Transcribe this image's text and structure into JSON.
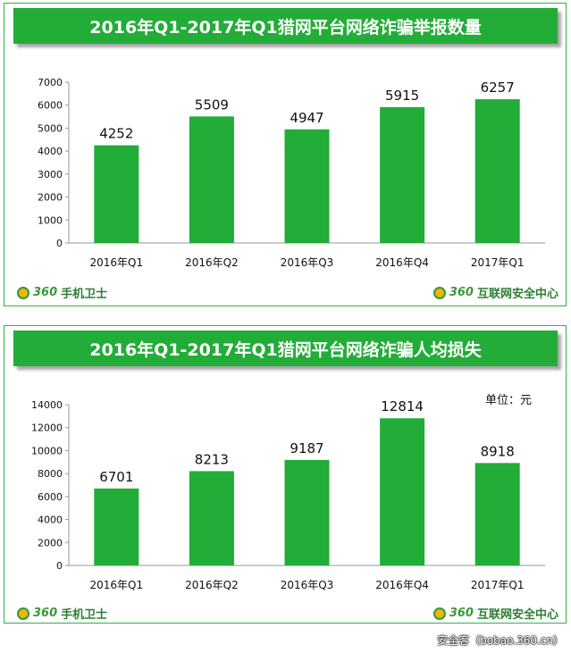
{
  "charts": [
    {
      "banner": "2016年Q1-2017年Q1猎网平台网络诈骗举报数量",
      "logo_left": {
        "num": "360",
        "text": "手机卫士"
      },
      "logo_right": {
        "num": "360",
        "text": "互联网安全中心"
      },
      "unit": ""
    },
    {
      "banner": "2016年Q1-2017年Q1猎网平台网络诈骗人均损失",
      "logo_left": {
        "num": "360",
        "text": "手机卫士"
      },
      "logo_right": {
        "num": "360",
        "text": "互联网安全中心"
      },
      "unit": "单位：元"
    }
  ],
  "watermark": "安全客（bobao.360.cn）",
  "colors": {
    "bar": "#22ac38",
    "banner": "#22ac38",
    "border": "#2db34a"
  },
  "chart_data": [
    {
      "type": "bar",
      "title": "2016年Q1-2017年Q1猎网平台网络诈骗举报数量",
      "categories": [
        "2016年Q1",
        "2016年Q2",
        "2016年Q3",
        "2016年Q4",
        "2017年Q1"
      ],
      "values": [
        4252,
        5509,
        4947,
        5915,
        6257
      ],
      "yticks": [
        0,
        1000,
        2000,
        3000,
        4000,
        5000,
        6000,
        7000
      ],
      "ylim": [
        0,
        7000
      ],
      "grid": false,
      "data_labels": true
    },
    {
      "type": "bar",
      "title": "2016年Q1-2017年Q1猎网平台网络诈骗人均损失",
      "categories": [
        "2016年Q1",
        "2016年Q2",
        "2016年Q3",
        "2016年Q4",
        "2017年Q1"
      ],
      "values": [
        6701,
        8213,
        9187,
        12814,
        8918
      ],
      "yticks": [
        0,
        2000,
        4000,
        6000,
        8000,
        10000,
        12000,
        14000
      ],
      "ylim": [
        0,
        14000
      ],
      "grid": false,
      "data_labels": true
    }
  ]
}
